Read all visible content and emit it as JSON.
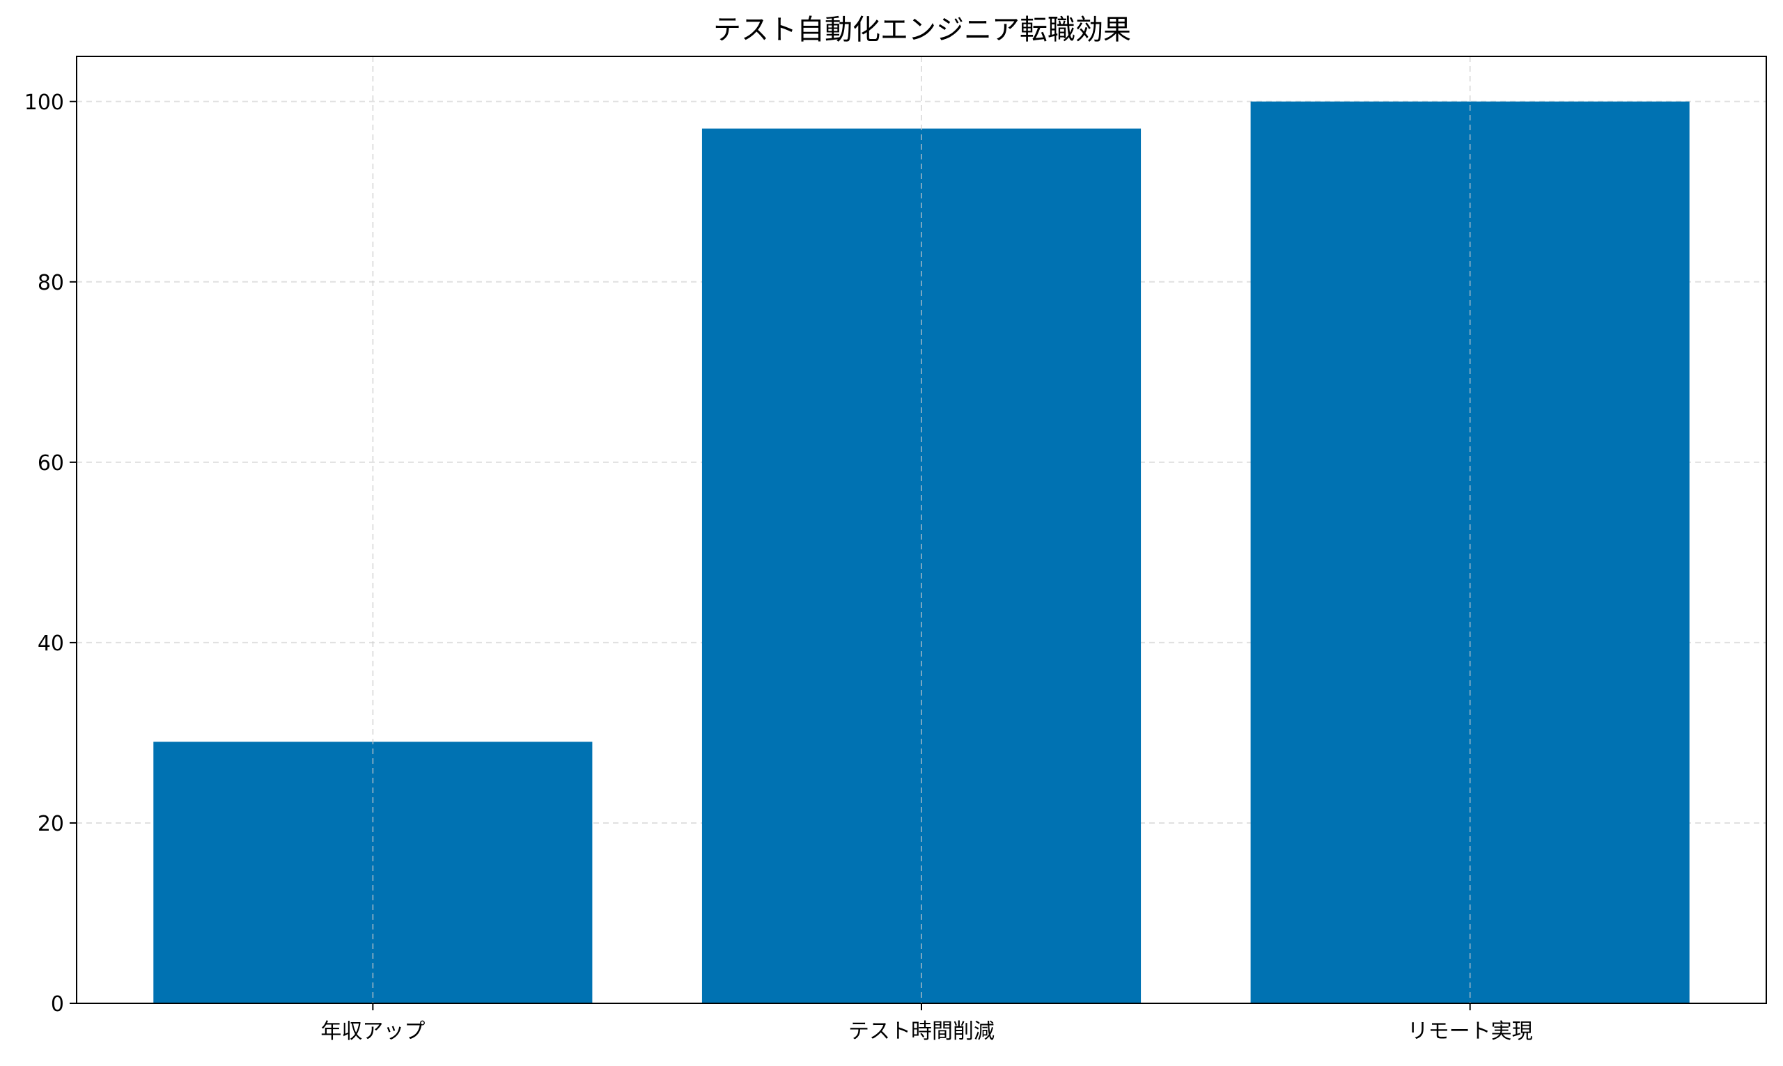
{
  "chart_data": {
    "type": "bar",
    "title": "テスト自動化エンジニア転職効果",
    "xlabel": "",
    "ylabel": "",
    "categories": [
      "年収アップ",
      "テスト時間削減",
      "リモート実現"
    ],
    "series": [
      {
        "values": [
          29,
          97,
          100
        ]
      }
    ],
    "ylim": [
      0,
      105
    ],
    "yticks": [
      0,
      20,
      40,
      60,
      80,
      100
    ],
    "grid": true,
    "legend": "none",
    "bar_color": "#0072b2",
    "grid_color": "#cccccc"
  }
}
